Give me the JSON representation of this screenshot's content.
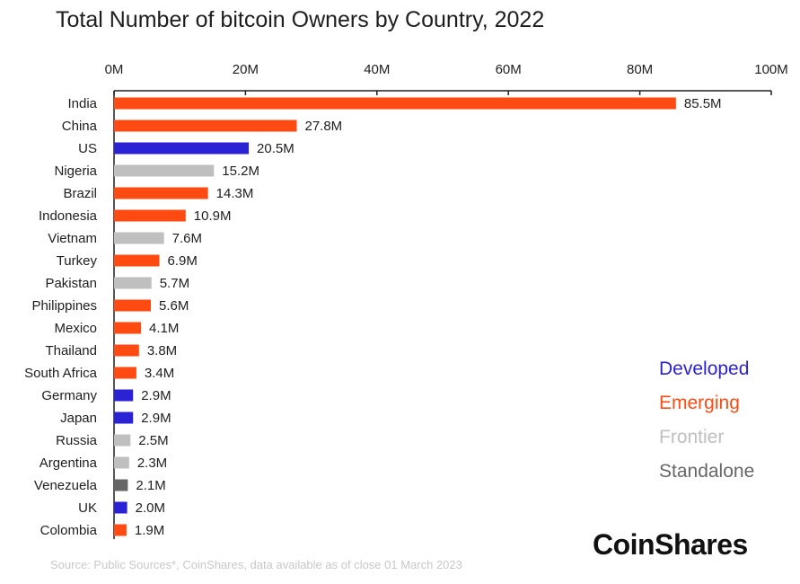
{
  "chart_data": {
    "type": "bar",
    "orientation": "horizontal",
    "title": "Total Number of bitcoin Owners by Country, 2022",
    "xlim": [
      0,
      100
    ],
    "x_ticks": [
      "0M",
      "20M",
      "40M",
      "60M",
      "80M",
      "100M"
    ],
    "x_tick_values": [
      0,
      20,
      40,
      60,
      80,
      100
    ],
    "x_axis_position": "top",
    "grid": false,
    "categories": [
      "India",
      "China",
      "US",
      "Nigeria",
      "Brazil",
      "Indonesia",
      "Vietnam",
      "Turkey",
      "Pakistan",
      "Philippines",
      "Mexico",
      "Thailand",
      "South Africa",
      "Germany",
      "Japan",
      "Russia",
      "Argentina",
      "Venezuela",
      "UK",
      "Colombia"
    ],
    "values": [
      85.5,
      27.8,
      20.5,
      15.2,
      14.3,
      10.9,
      7.6,
      6.9,
      5.7,
      5.6,
      4.1,
      3.8,
      3.4,
      2.9,
      2.9,
      2.5,
      2.3,
      2.1,
      2.0,
      1.9
    ],
    "value_labels": [
      "85.5M",
      "27.8M",
      "20.5M",
      "15.2M",
      "14.3M",
      "10.9M",
      "7.6M",
      "6.9M",
      "5.7M",
      "5.6M",
      "4.1M",
      "3.8M",
      "3.4M",
      "2.9M",
      "2.9M",
      "2.5M",
      "2.3M",
      "2.1M",
      "2.0M",
      "1.9M"
    ],
    "groups": [
      "Emerging",
      "Emerging",
      "Developed",
      "Frontier",
      "Emerging",
      "Emerging",
      "Frontier",
      "Emerging",
      "Frontier",
      "Emerging",
      "Emerging",
      "Emerging",
      "Emerging",
      "Developed",
      "Developed",
      "Frontier",
      "Frontier",
      "Standalone",
      "Developed",
      "Emerging"
    ],
    "legend_placement": "bottom-right",
    "legend": [
      {
        "name": "Developed",
        "color": "#2b22d6"
      },
      {
        "name": "Emerging",
        "color": "#ff4a11"
      },
      {
        "name": "Frontier",
        "color": "#bfbfbf"
      },
      {
        "name": "Standalone",
        "color": "#666666"
      }
    ]
  },
  "brand": "CoinShares",
  "source": "Source: Public Sources*, CoinShares, data available as of close 01 March 2023"
}
